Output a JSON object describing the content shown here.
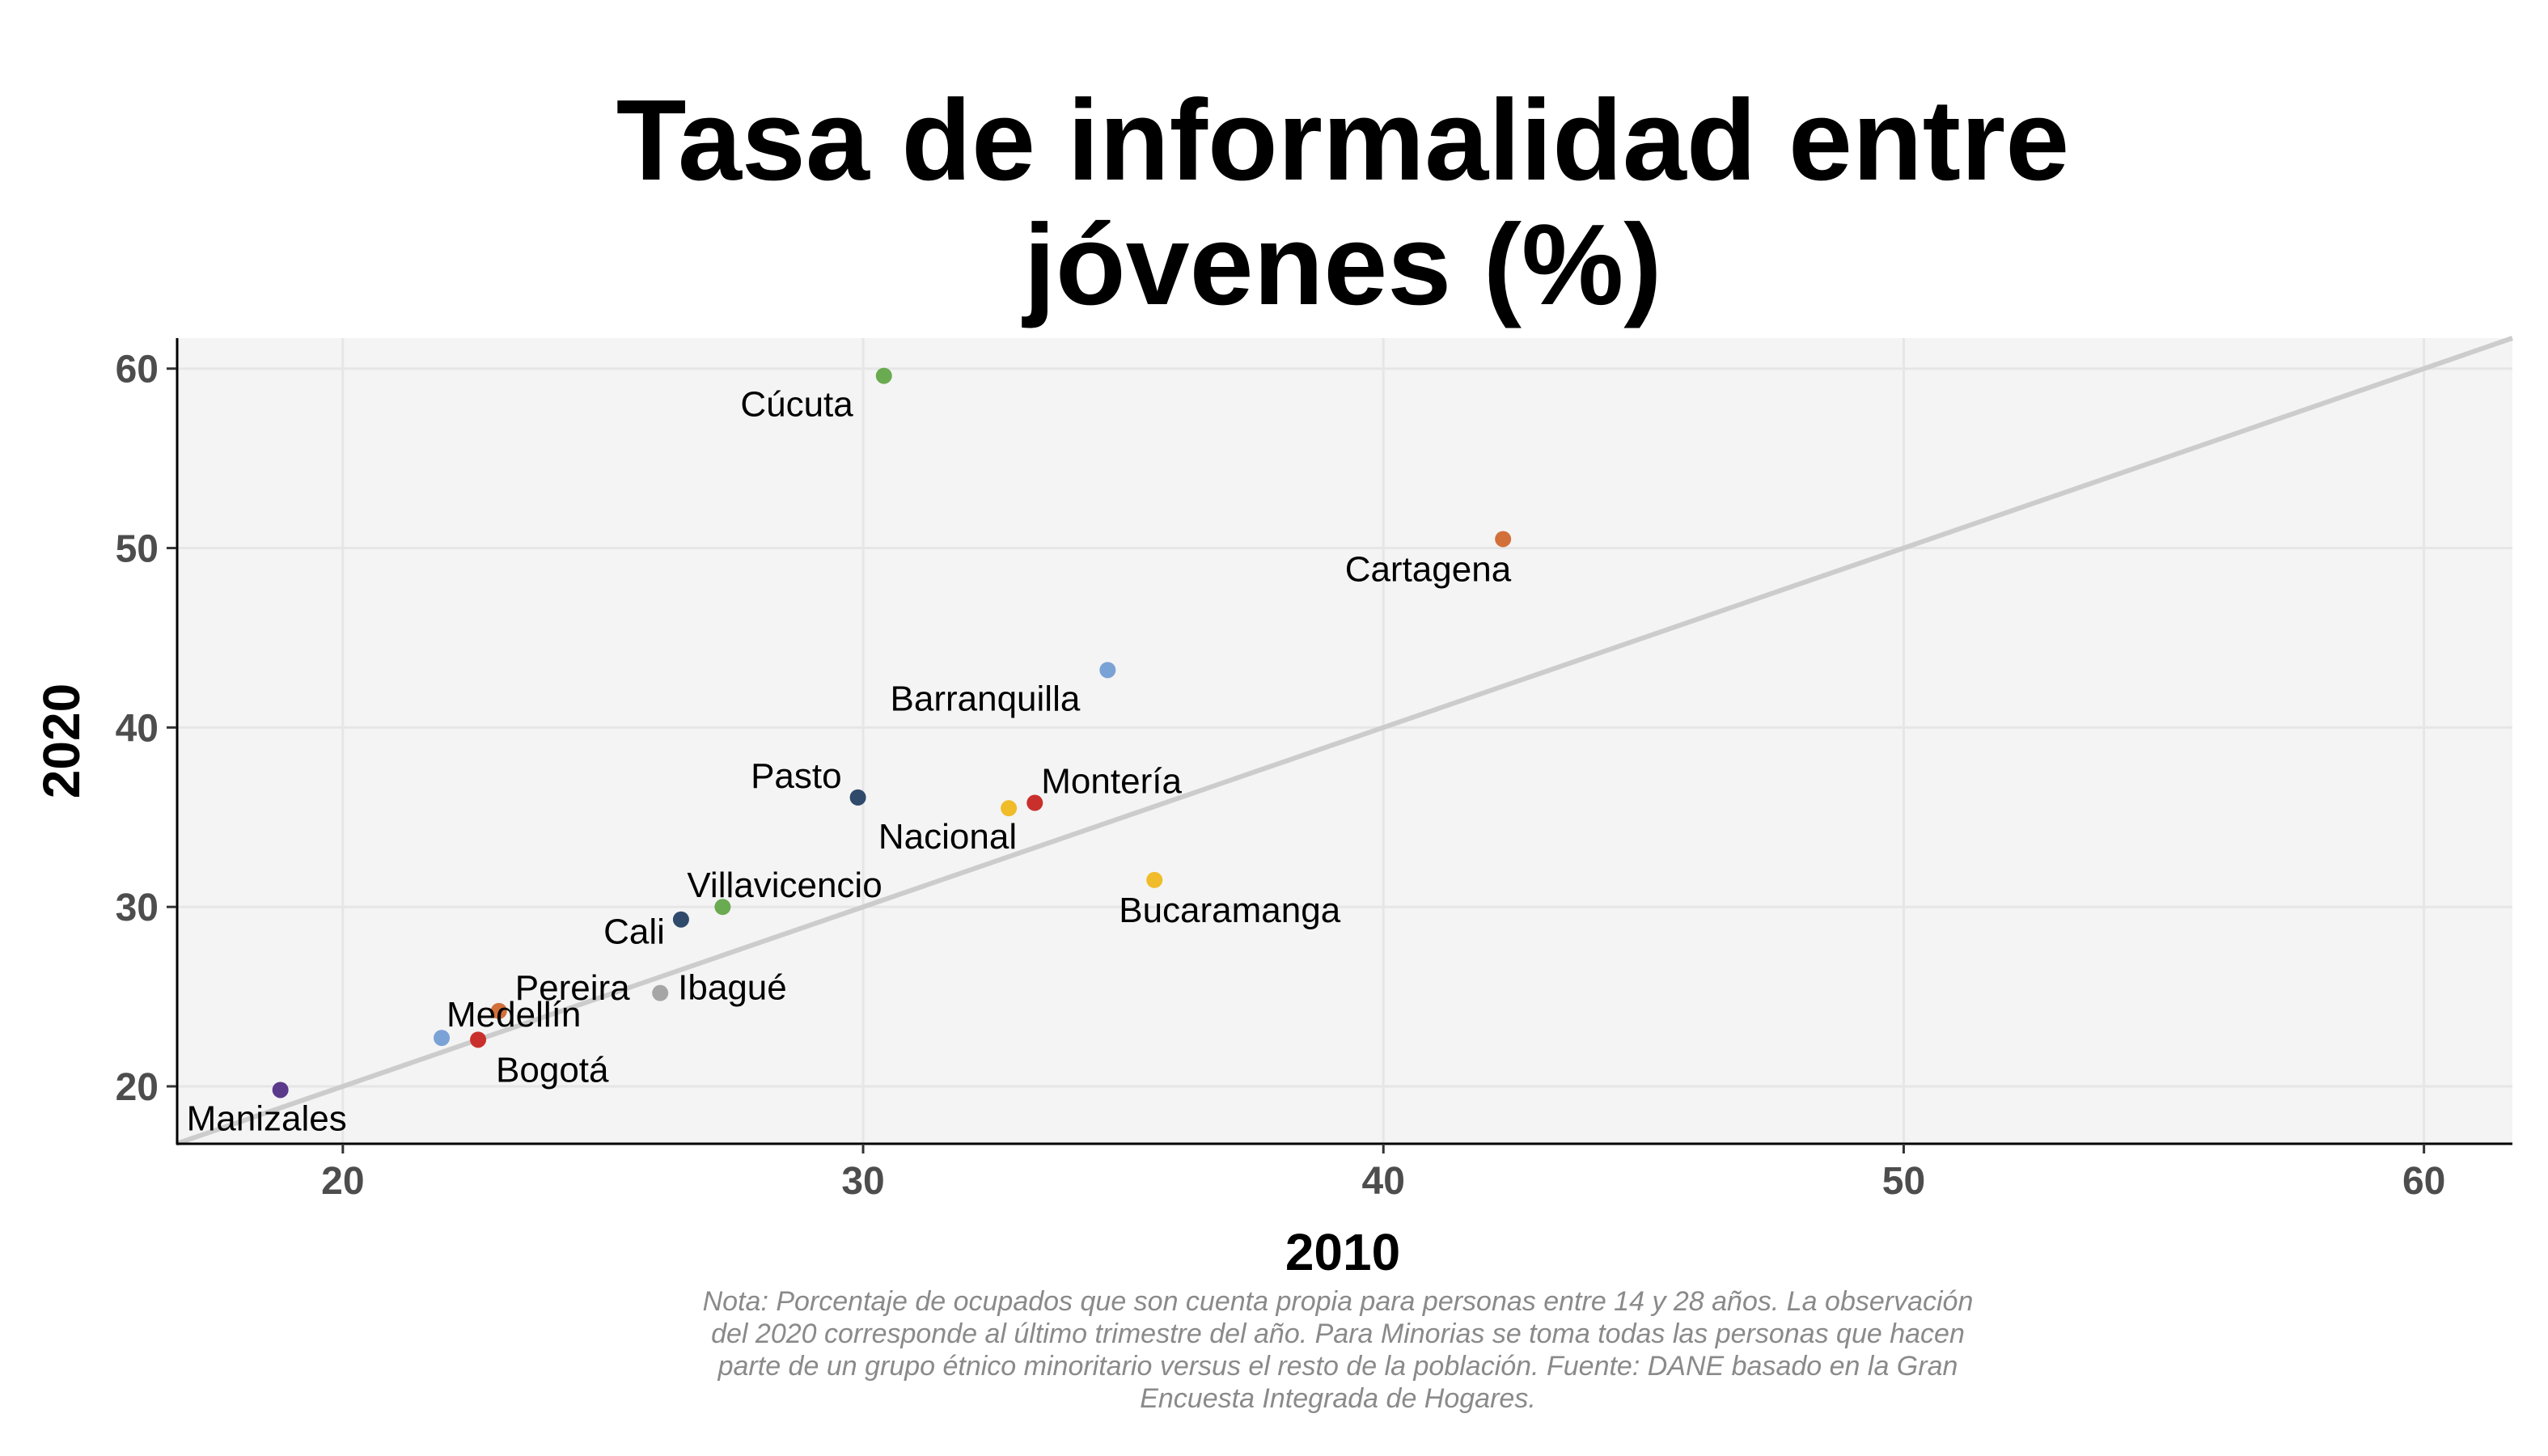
{
  "chart_data": {
    "type": "scatter",
    "title_lines": [
      "Tasa de informalidad entre",
      "jóvenes (%)"
    ],
    "xlabel": "2010",
    "ylabel": "2020",
    "xlim": [
      16.8,
      61.7
    ],
    "ylim": [
      16.8,
      61.7
    ],
    "x_ticks": [
      20,
      30,
      40,
      50,
      60
    ],
    "y_ticks": [
      20,
      30,
      40,
      50,
      60
    ],
    "grid": true,
    "reference_line": "y = x",
    "points": [
      {
        "label": "Cúcuta",
        "x": 30.4,
        "y": 59.6,
        "color": "#6aaa50"
      },
      {
        "label": "Cartagena",
        "x": 42.3,
        "y": 50.5,
        "color": "#d2703a"
      },
      {
        "label": "Barranquilla",
        "x": 34.7,
        "y": 43.2,
        "color": "#7aa2d6"
      },
      {
        "label": "Pasto",
        "x": 29.9,
        "y": 36.1,
        "color": "#2f4a6b"
      },
      {
        "label": "Nacional",
        "x": 32.8,
        "y": 35.5,
        "color": "#f0bc2a"
      },
      {
        "label": "Montería",
        "x": 33.3,
        "y": 35.8,
        "color": "#c9302c"
      },
      {
        "label": "Bucaramanga",
        "x": 35.6,
        "y": 31.5,
        "color": "#f0bc2a"
      },
      {
        "label": "Villavicencio",
        "x": 27.3,
        "y": 30.0,
        "color": "#6aaa50"
      },
      {
        "label": "Cali",
        "x": 26.5,
        "y": 29.3,
        "color": "#2f4a6b"
      },
      {
        "label": "Pereira",
        "x": 23.0,
        "y": 24.2,
        "color": "#d2703a"
      },
      {
        "label": "Ibagué",
        "x": 26.1,
        "y": 25.2,
        "color": "#a6a6a6"
      },
      {
        "label": "Bogotá",
        "x": 22.6,
        "y": 22.6,
        "color": "#c9302c"
      },
      {
        "label": "Medellín",
        "x": 21.9,
        "y": 22.7,
        "color": "#7aa2d6"
      },
      {
        "label": "Manizales",
        "x": 18.8,
        "y": 19.8,
        "color": "#5b3a8c"
      }
    ],
    "note_lines": [
      "Nota: Porcentaje de ocupados que son cuenta propia para personas entre 14 y 28 años. La observación",
      "del 2020 corresponde al último trimestre del año. Para Minorias se toma todas las personas que hacen",
      "parte de un grupo étnico minoritario versus el resto de la población. Fuente: DANE basado en la Gran",
      "Encuesta Integrada de Hogares."
    ]
  }
}
